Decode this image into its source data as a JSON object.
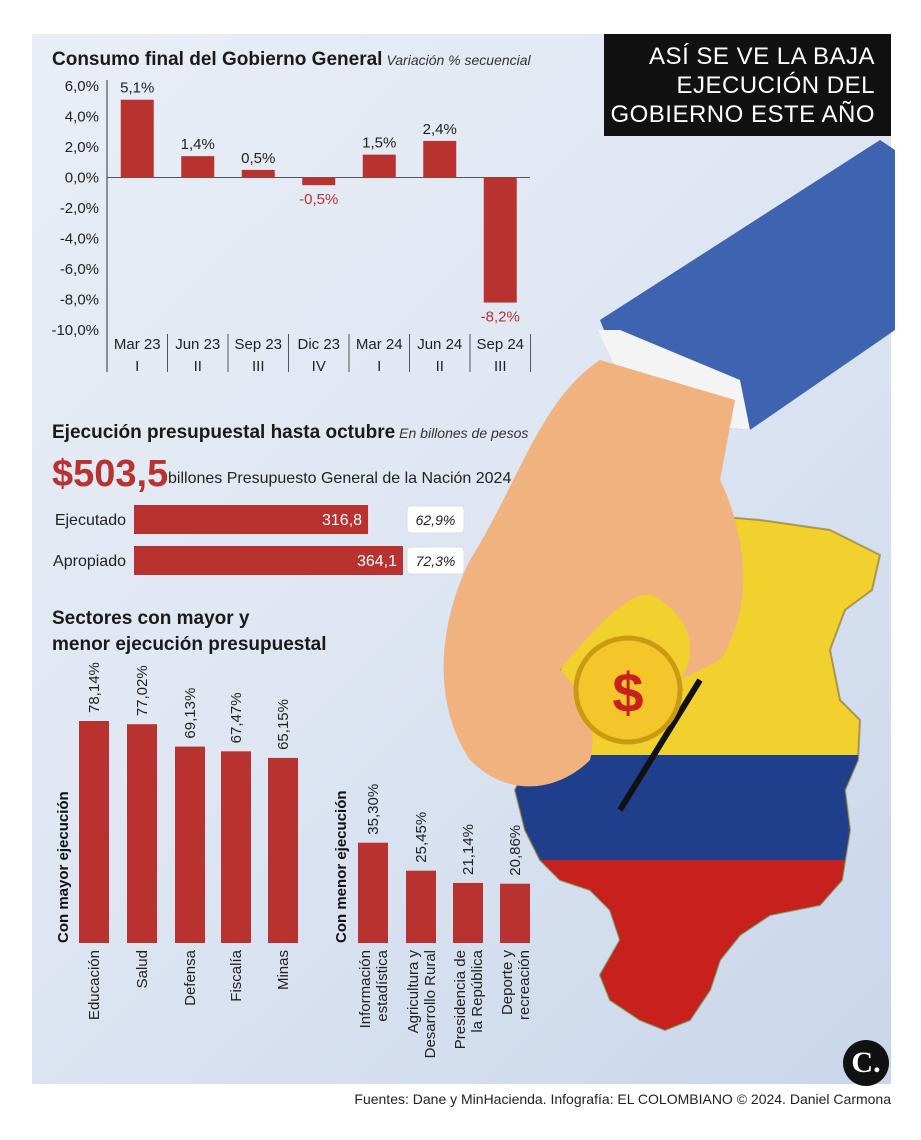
{
  "header": {
    "title": "ASÍ SE VE LA BAJA EJECUCIÓN DEL GOBIERNO ESTE AÑO"
  },
  "section1": {
    "title": "Consumo final del Gobierno General",
    "subtitle": "Variación % secuencial"
  },
  "section2": {
    "title": "Ejecución presupuestal hasta octubre",
    "subtitle": "En billones de pesos",
    "total": "$503,5",
    "total_desc": "billones Presupuesto General de la Nación 2024"
  },
  "section3": {
    "title_line1": "Sectores con mayor y",
    "title_line2": "menor ejecución presupuestal"
  },
  "footer": {
    "sources": "Fuentes: Dane y MinHacienda. Infografía: EL COLOMBIANO © 2024. Daniel Carmona"
  },
  "logo": {
    "letter": "C."
  },
  "colors": {
    "bar": "#b8322f",
    "negative_label": "#b8322f",
    "title_bg": "#111111",
    "flag_yellow": "#f2d12e",
    "flag_blue": "#1f3f8c",
    "flag_red": "#c8201c",
    "sleeve": "#3e63b0",
    "skin": "#f0b27e",
    "coin": "#f5c62a"
  },
  "illustration": {
    "icons": [
      "hand-icon",
      "colombia-map-icon",
      "coin-icon"
    ],
    "coin_symbol": "$"
  },
  "chart_data": [
    {
      "type": "bar",
      "title": "Consumo final del Gobierno General",
      "subtitle": "Variación % secuencial",
      "categories": [
        "Mar 23",
        "Jun 23",
        "Sep 23",
        "Dic 23",
        "Mar 24",
        "Jun 24",
        "Sep 24"
      ],
      "quarters": [
        "I",
        "II",
        "III",
        "IV",
        "I",
        "II",
        "III"
      ],
      "values": [
        5.1,
        1.4,
        0.5,
        -0.5,
        1.5,
        2.4,
        -8.2
      ],
      "value_labels": [
        "5,1%",
        "1,4%",
        "0,5%",
        "-0,5%",
        "1,5%",
        "2,4%",
        "-8,2%"
      ],
      "ylim": [
        -10,
        6
      ],
      "yticks": [
        6,
        4,
        2,
        0,
        -2,
        -4,
        -6,
        -8,
        -10
      ],
      "ytick_labels": [
        "6,0%",
        "4,0%",
        "2,0%",
        "0,0%",
        "-2,0%",
        "-4,0%",
        "-6,0%",
        "-8,0%",
        "-10,0%"
      ],
      "grid": false,
      "legend": "none"
    },
    {
      "type": "bar",
      "orientation": "horizontal",
      "title": "Ejecución presupuestal hasta octubre",
      "subtitle": "En billones de pesos",
      "categories": [
        "Ejecutado",
        "Apropiado"
      ],
      "values": [
        316.8,
        364.1
      ],
      "value_labels": [
        "316,8",
        "364,1"
      ],
      "percentages": [
        "62,9%",
        "72,3%"
      ],
      "xlim": [
        0,
        503.5
      ]
    },
    {
      "type": "bar",
      "title": "Con mayor ejecución",
      "categories": [
        "Educación",
        "Salud",
        "Defensa",
        "Fiscalía",
        "Minas"
      ],
      "values": [
        78.14,
        77.02,
        69.13,
        67.47,
        65.15
      ],
      "value_labels": [
        "78,14%",
        "77,02%",
        "69,13%",
        "67,47%",
        "65,15%"
      ],
      "ylim": [
        0,
        100
      ]
    },
    {
      "type": "bar",
      "title": "Con menor ejecución",
      "categories": [
        "Información estadística",
        "Agricultura y Desarrollo Rural",
        "Presidencia de la República",
        "Deporte y recreación"
      ],
      "category_lines": [
        [
          "Información",
          "estadística"
        ],
        [
          "Agricultura y",
          "Desarrollo Rural"
        ],
        [
          "Presidencia de",
          "la República"
        ],
        [
          "Deporte y",
          "recreación"
        ]
      ],
      "values": [
        35.3,
        25.45,
        21.14,
        20.86
      ],
      "value_labels": [
        "35,30%",
        "25,45%",
        "21,14%",
        "20,86%"
      ],
      "ylim": [
        0,
        100
      ]
    }
  ]
}
